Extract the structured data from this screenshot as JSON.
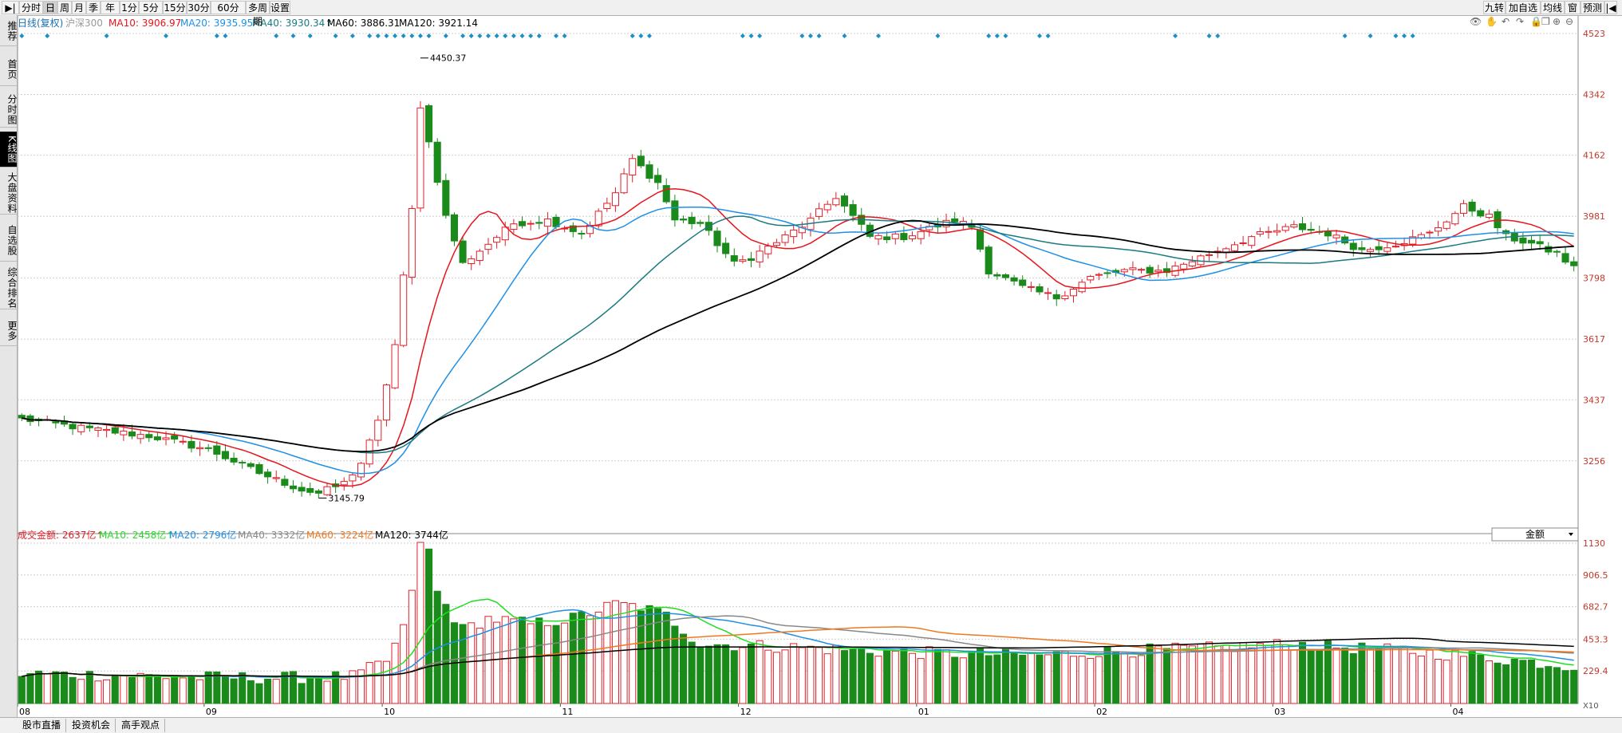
{
  "toolbar": {
    "left_tabs": [
      {
        "label": "▶|",
        "name": "panel-toggle-button"
      },
      {
        "label": "分时",
        "name": "tab-intraday"
      },
      {
        "label": "日",
        "name": "tab-day",
        "active": true
      },
      {
        "label": "周",
        "name": "tab-week"
      },
      {
        "label": "月",
        "name": "tab-month"
      },
      {
        "label": "季",
        "name": "tab-quarter"
      },
      {
        "label": "年",
        "name": "tab-year"
      },
      {
        "label": "1分",
        "name": "tab-1min"
      },
      {
        "label": "5分",
        "name": "tab-5min"
      },
      {
        "label": "15分",
        "name": "tab-15min"
      },
      {
        "label": "30分",
        "name": "tab-30min"
      },
      {
        "label": "60分",
        "name": "tab-60min"
      },
      {
        "label": "多周期",
        "name": "tab-multi-period"
      },
      {
        "label": "设置",
        "name": "tab-settings"
      }
    ],
    "right_tabs": [
      {
        "label": "九转",
        "name": "tab-nine-turn"
      },
      {
        "label": "加自选",
        "name": "tab-add-watchlist"
      },
      {
        "label": "均线",
        "name": "tab-moving-average"
      },
      {
        "label": "窗",
        "name": "tab-window"
      },
      {
        "label": "预测",
        "name": "tab-forecast"
      },
      {
        "label": "|◀",
        "name": "collapse-right-button"
      }
    ]
  },
  "sidebar": [
    {
      "label": "推荐",
      "name": "sidebar-item-recommend"
    },
    {
      "label": "首页",
      "name": "sidebar-item-home"
    },
    {
      "label": "分时图",
      "name": "sidebar-item-intraday-chart"
    },
    {
      "label": "K线图",
      "name": "sidebar-item-kline-chart",
      "active": true
    },
    {
      "label": "大盘资料",
      "name": "sidebar-item-market-info"
    },
    {
      "label": "自选股",
      "name": "sidebar-item-watchlist"
    },
    {
      "label": "综合排名",
      "name": "sidebar-item-ranking"
    },
    {
      "label": "更多",
      "name": "sidebar-item-more"
    }
  ],
  "bottom_tabs": [
    {
      "label": "股市直播",
      "name": "tab-live"
    },
    {
      "label": "投资机会",
      "name": "tab-opportunities"
    },
    {
      "label": "高手观点",
      "name": "tab-expert-views"
    }
  ],
  "legend_main": {
    "period": "日线(复权)",
    "index_name": "沪深300",
    "ma10": "MA10: 3906.97",
    "ma20": "MA20: 3935.95",
    "ma40": "MA40: 3930.34↑",
    "ma60": "MA60: 3886.31",
    "ma120": "MA120: 3921.14"
  },
  "legend_volume": {
    "amount": "成交金额: 2637亿↑",
    "ma10": "MA10: 2458亿↑",
    "ma20": "MA20: 2796亿",
    "ma40": "MA40: 3332亿",
    "ma60": "MA60: 3224亿",
    "ma120": "MA120: 3744亿"
  },
  "volume_selector": {
    "value": "金额"
  },
  "volume_unit": "X10",
  "colors": {
    "up": "#e0202a",
    "down": "#1a8a1a",
    "ma10": "#e8141c",
    "ma20": "#1e90e6",
    "ma40": "#1a7a80",
    "ma120": "#000000",
    "vol_ma10": "#22dd22",
    "vol_ma20": "#1e90e6",
    "vol_ma40": "#888888",
    "vol_ma60": "#f07820",
    "vol_ma120": "#000000",
    "diamond": "#1a8fc8",
    "grid": "#d0d0d0"
  },
  "chart_data": {
    "type": "candlestick",
    "price_axis": {
      "ticks": [
        "4523",
        "4342",
        "4162",
        "3981",
        "3798",
        "3617",
        "3437",
        "3256"
      ],
      "ylim": [
        3064,
        4523
      ]
    },
    "volume_axis": {
      "ticks": [
        "1130",
        "906.5",
        "682.7",
        "453.3",
        "229.4"
      ],
      "ylim": [
        0,
        1130
      ]
    },
    "x_tick_labels": [
      {
        "label": "08",
        "index": 0
      },
      {
        "label": "09",
        "index": 22
      },
      {
        "label": "10",
        "index": 43
      },
      {
        "label": "11",
        "index": 64
      },
      {
        "label": "12",
        "index": 85
      },
      {
        "label": "01",
        "index": 106
      },
      {
        "label": "02",
        "index": 127
      },
      {
        "label": "03",
        "index": 148
      },
      {
        "label": "04",
        "index": 169
      }
    ],
    "annotations": [
      {
        "text": "4450.37",
        "index": 47,
        "value": 4450.37,
        "kind": "high"
      },
      {
        "text": "3145.79",
        "index": 35,
        "value": 3145.79,
        "kind": "low"
      }
    ],
    "ohlc_summary": {
      "count": 184,
      "start_close": 3380,
      "low": 3145.79,
      "low_index": 35,
      "high": 4450.37,
      "high_index": 47,
      "end_close": 3828
    },
    "key_closes": [
      [
        0,
        3380
      ],
      [
        8,
        3350
      ],
      [
        15,
        3330
      ],
      [
        22,
        3290
      ],
      [
        28,
        3220
      ],
      [
        33,
        3170
      ],
      [
        35,
        3160
      ],
      [
        38,
        3190
      ],
      [
        40,
        3250
      ],
      [
        42,
        3370
      ],
      [
        44,
        3600
      ],
      [
        46,
        4000
      ],
      [
        47,
        4310
      ],
      [
        48,
        4200
      ],
      [
        50,
        3980
      ],
      [
        52,
        3840
      ],
      [
        55,
        3900
      ],
      [
        58,
        3960
      ],
      [
        62,
        3970
      ],
      [
        66,
        3930
      ],
      [
        70,
        4050
      ],
      [
        72,
        4150
      ],
      [
        75,
        4080
      ],
      [
        77,
        3970
      ],
      [
        80,
        3960
      ],
      [
        84,
        3840
      ],
      [
        86,
        3860
      ],
      [
        90,
        3920
      ],
      [
        93,
        3970
      ],
      [
        96,
        4040
      ],
      [
        100,
        3920
      ],
      [
        104,
        3920
      ],
      [
        110,
        3970
      ],
      [
        112,
        3950
      ],
      [
        114,
        3820
      ],
      [
        118,
        3770
      ],
      [
        122,
        3740
      ],
      [
        126,
        3800
      ],
      [
        130,
        3820
      ],
      [
        135,
        3820
      ],
      [
        140,
        3870
      ],
      [
        145,
        3920
      ],
      [
        150,
        3950
      ],
      [
        154,
        3930
      ],
      [
        158,
        3880
      ],
      [
        162,
        3900
      ],
      [
        166,
        3930
      ],
      [
        170,
        4010
      ],
      [
        173,
        3980
      ],
      [
        175,
        3920
      ],
      [
        178,
        3900
      ],
      [
        181,
        3870
      ],
      [
        183,
        3828
      ]
    ],
    "ma_current": {
      "MA10": 3906.97,
      "MA20": 3935.95,
      "MA40": 3930.34,
      "MA60": 3886.31,
      "MA120": 3921.14
    },
    "volume_current": {
      "amount": 2637,
      "MA10": 2458,
      "MA20": 2796,
      "MA40": 3332,
      "MA60": 3224,
      "MA120": 3744
    },
    "volume_key": [
      [
        0,
        210
      ],
      [
        10,
        200
      ],
      [
        20,
        185
      ],
      [
        30,
        180
      ],
      [
        39,
        190
      ],
      [
        43,
        300
      ],
      [
        45,
        520
      ],
      [
        47,
        1110
      ],
      [
        48,
        1080
      ],
      [
        49,
        780
      ],
      [
        52,
        520
      ],
      [
        55,
        600
      ],
      [
        60,
        560
      ],
      [
        65,
        600
      ],
      [
        70,
        700
      ],
      [
        73,
        680
      ],
      [
        76,
        620
      ],
      [
        80,
        420
      ],
      [
        90,
        400
      ],
      [
        100,
        370
      ],
      [
        110,
        350
      ],
      [
        120,
        340
      ],
      [
        130,
        370
      ],
      [
        140,
        390
      ],
      [
        150,
        420
      ],
      [
        160,
        380
      ],
      [
        170,
        340
      ],
      [
        183,
        263
      ]
    ],
    "diamond_markers": [
      0,
      3,
      10,
      17,
      23,
      24,
      30,
      32,
      34,
      37,
      39,
      41,
      42,
      43,
      44,
      45,
      46,
      47,
      48,
      50,
      52,
      53,
      54,
      55,
      56,
      57,
      58,
      59,
      60,
      61,
      63,
      64,
      72,
      73,
      74,
      85,
      86,
      87,
      92,
      93,
      94,
      97,
      101,
      108,
      114,
      115,
      116,
      120,
      121,
      136,
      140,
      141,
      156,
      159,
      162,
      163,
      164
    ]
  }
}
